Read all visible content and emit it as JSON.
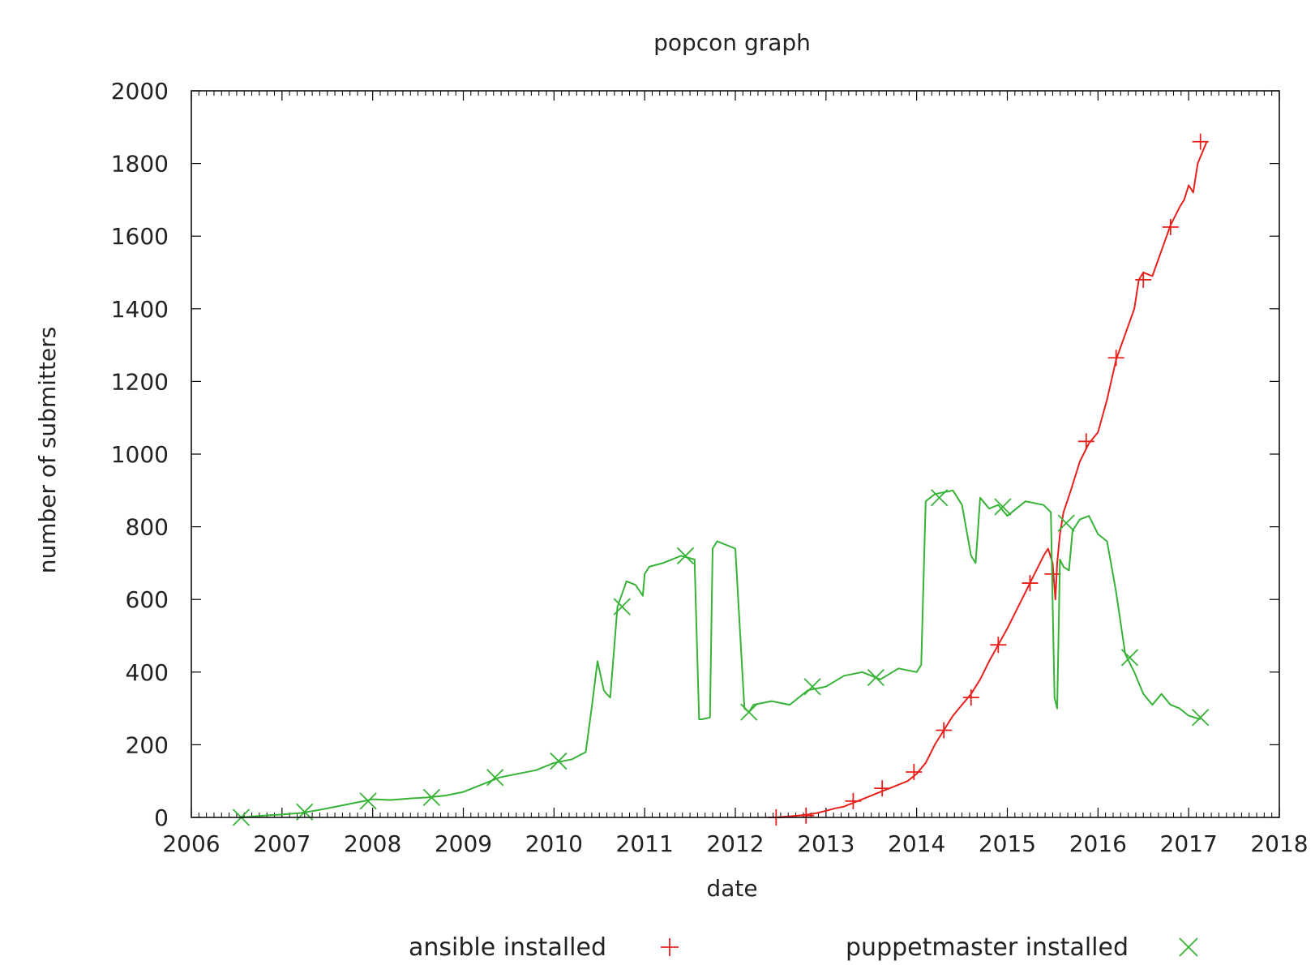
{
  "chart_data": {
    "type": "line",
    "title": "popcon graph",
    "xlabel": "date",
    "ylabel": "number of submitters",
    "xlim": [
      2006,
      2018
    ],
    "ylim": [
      0,
      2000
    ],
    "xticks": [
      "2006",
      "2007",
      "2008",
      "2009",
      "2010",
      "2011",
      "2012",
      "2013",
      "2014",
      "2015",
      "2016",
      "2017",
      "2018"
    ],
    "yticks": [
      "0",
      "200",
      "400",
      "600",
      "800",
      "1000",
      "1200",
      "1400",
      "1600",
      "1800",
      "2000"
    ],
    "grid": false,
    "legend_position": "bottom",
    "series": [
      {
        "name": "ansible installed",
        "color": "#e8201c",
        "marker": "plus",
        "x": [
          2012.45,
          2012.55,
          2012.7,
          2012.8,
          2012.9,
          2013.0,
          2013.1,
          2013.2,
          2013.3,
          2013.4,
          2013.5,
          2013.6,
          2013.7,
          2013.8,
          2013.9,
          2014.0,
          2014.1,
          2014.2,
          2014.3,
          2014.4,
          2014.5,
          2014.6,
          2014.7,
          2014.8,
          2014.9,
          2015.0,
          2015.1,
          2015.2,
          2015.3,
          2015.4,
          2015.45,
          2015.5,
          2015.53,
          2015.55,
          2015.58,
          2015.62,
          2015.7,
          2015.8,
          2015.9,
          2016.0,
          2016.1,
          2016.2,
          2016.3,
          2016.4,
          2016.45,
          2016.5,
          2016.6,
          2016.7,
          2016.8,
          2016.9,
          2016.95,
          2017.0,
          2017.05,
          2017.1,
          2017.2
        ],
        "y": [
          0,
          2,
          5,
          8,
          12,
          18,
          25,
          30,
          40,
          50,
          60,
          70,
          80,
          90,
          100,
          120,
          150,
          200,
          240,
          280,
          310,
          340,
          380,
          430,
          475,
          520,
          570,
          620,
          670,
          720,
          740,
          700,
          600,
          700,
          780,
          840,
          900,
          980,
          1030,
          1060,
          1150,
          1260,
          1330,
          1400,
          1480,
          1500,
          1490,
          1560,
          1630,
          1680,
          1700,
          1740,
          1720,
          1800,
          1860
        ],
        "markers": [
          [
            2012.45,
            0
          ],
          [
            2012.78,
            5
          ],
          [
            2013.3,
            45
          ],
          [
            2013.62,
            80
          ],
          [
            2013.97,
            125
          ],
          [
            2014.3,
            240
          ],
          [
            2014.6,
            330
          ],
          [
            2014.9,
            475
          ],
          [
            2015.25,
            645
          ],
          [
            2015.5,
            670
          ],
          [
            2015.87,
            1035
          ],
          [
            2016.2,
            1265
          ],
          [
            2016.5,
            1480
          ],
          [
            2016.8,
            1625
          ],
          [
            2017.13,
            1860
          ]
        ]
      },
      {
        "name": "puppetmaster installed",
        "color": "#36b336",
        "marker": "cross",
        "x": [
          2006.55,
          2006.8,
          2007.0,
          2007.2,
          2007.4,
          2007.6,
          2007.8,
          2008.0,
          2008.2,
          2008.4,
          2008.6,
          2008.8,
          2009.0,
          2009.2,
          2009.4,
          2009.6,
          2009.8,
          2010.0,
          2010.2,
          2010.35,
          2010.42,
          2010.48,
          2010.55,
          2010.58,
          2010.62,
          2010.7,
          2010.8,
          2010.9,
          2010.98,
          2011.0,
          2011.05,
          2011.2,
          2011.4,
          2011.55,
          2011.6,
          2011.63,
          2011.72,
          2011.75,
          2011.8,
          2011.9,
          2012.0,
          2012.1,
          2012.15,
          2012.2,
          2012.4,
          2012.6,
          2012.8,
          2013.0,
          2013.2,
          2013.4,
          2013.6,
          2013.8,
          2014.0,
          2014.05,
          2014.1,
          2014.2,
          2014.4,
          2014.5,
          2014.6,
          2014.65,
          2014.7,
          2014.8,
          2014.9,
          2015.0,
          2015.2,
          2015.4,
          2015.48,
          2015.52,
          2015.55,
          2015.58,
          2015.62,
          2015.68,
          2015.72,
          2015.8,
          2015.9,
          2016.0,
          2016.1,
          2016.2,
          2016.3,
          2016.4,
          2016.5,
          2016.6,
          2016.7,
          2016.8,
          2016.9,
          2017.0,
          2017.13
        ],
        "y": [
          0,
          5,
          8,
          12,
          20,
          30,
          40,
          50,
          48,
          52,
          55,
          60,
          70,
          90,
          110,
          120,
          130,
          150,
          160,
          180,
          310,
          430,
          350,
          340,
          330,
          580,
          650,
          640,
          610,
          670,
          690,
          700,
          720,
          710,
          270,
          270,
          275,
          740,
          760,
          750,
          740,
          300,
          290,
          310,
          320,
          310,
          350,
          360,
          390,
          400,
          380,
          410,
          400,
          420,
          870,
          890,
          900,
          860,
          720,
          700,
          880,
          850,
          860,
          830,
          870,
          860,
          840,
          330,
          300,
          710,
          690,
          680,
          790,
          820,
          830,
          780,
          760,
          620,
          450,
          400,
          340,
          310,
          340,
          310,
          300,
          280,
          270
        ],
        "markers": [
          [
            2006.55,
            0
          ],
          [
            2007.25,
            15
          ],
          [
            2007.95,
            45
          ],
          [
            2008.65,
            55
          ],
          [
            2009.35,
            110
          ],
          [
            2010.05,
            155
          ],
          [
            2010.75,
            580
          ],
          [
            2011.45,
            720
          ],
          [
            2012.15,
            290
          ],
          [
            2012.85,
            360
          ],
          [
            2013.55,
            385
          ],
          [
            2014.25,
            880
          ],
          [
            2014.95,
            855
          ],
          [
            2015.65,
            810
          ],
          [
            2016.35,
            440
          ],
          [
            2017.13,
            275
          ]
        ]
      }
    ]
  }
}
